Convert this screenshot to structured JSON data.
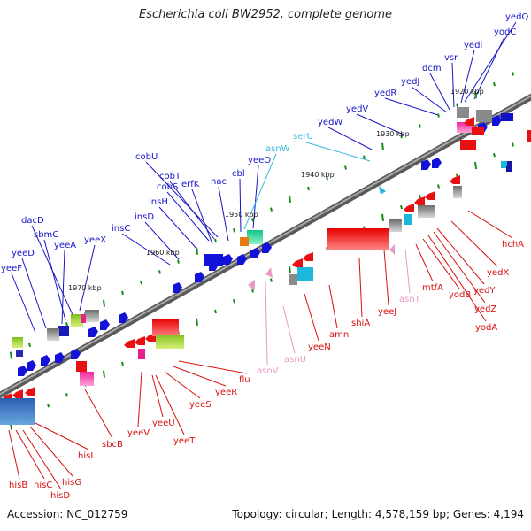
{
  "title": "Escherichia coli BW2952, complete genome",
  "footer": {
    "accession": "Accession: NC_012759",
    "summary": "Topology: circular; Length: 4,578,159 bp; Genes: 4,194"
  },
  "colors": {
    "forward_label": "#1515c8",
    "reverse_label": "#d81010",
    "rna_forward": "#3ab9dc",
    "rna_reverse": "#e79ac4",
    "tick": "#1a8a1a",
    "backbone": "#808080"
  },
  "scale_labels": [
    "1920 kbp",
    "1930 kbp",
    "1940 kbp",
    "1950 kbp",
    "1960 kbp",
    "1970 kbp"
  ],
  "forward_labels": [
    "yedQ",
    "yodC",
    "yedI",
    "vsr",
    "dcm",
    "yedJ",
    "yedR",
    "yedV",
    "yedW",
    "cobU",
    "cobT",
    "cobS",
    "erfK",
    "insH",
    "nac",
    "cbl",
    "yeeO",
    "insD",
    "insC",
    "yeeX",
    "dacD",
    "sbmC",
    "yeeA",
    "yeeD",
    "yeeF"
  ],
  "rna_forward_labels": [
    "asnW",
    "serU"
  ],
  "reverse_labels": [
    "hchA",
    "yedX",
    "yedY",
    "yedZ",
    "yodA",
    "yodB",
    "mtfA",
    "yeeJ",
    "shiA",
    "amn",
    "yeeN",
    "flu",
    "yeeR",
    "yeeS",
    "yeeT",
    "yeeU",
    "yeeV",
    "sbcB",
    "hisL",
    "hisG",
    "hisD",
    "hisC",
    "hisB"
  ],
  "rna_reverse_labels": [
    "asnT",
    "asnU",
    "asnV"
  ]
}
